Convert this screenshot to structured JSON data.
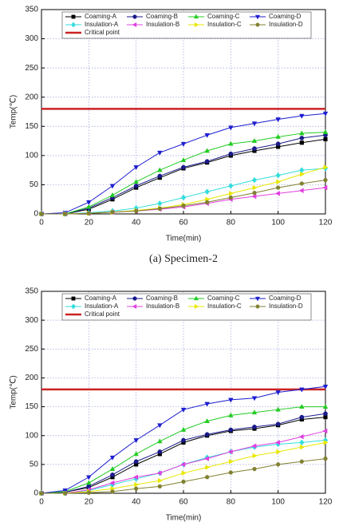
{
  "chart_data": [
    {
      "type": "line",
      "caption": "(a)  Specimen-2",
      "xlabel": "Time(min)",
      "ylabel": "Temp(℃)",
      "x": [
        0,
        10,
        20,
        30,
        40,
        50,
        60,
        70,
        80,
        90,
        100,
        110,
        120
      ],
      "xlim": [
        0,
        120
      ],
      "xticks": [
        0,
        20,
        40,
        60,
        80,
        100,
        120
      ],
      "ylim": [
        0,
        350
      ],
      "yticks": [
        0,
        50,
        100,
        150,
        200,
        250,
        300,
        350
      ],
      "grid": true,
      "legend": "upper left",
      "series": [
        {
          "name": "Coaming-A",
          "color": "#000000",
          "marker": "square",
          "values": [
            0,
            0,
            8,
            25,
            45,
            62,
            78,
            88,
            100,
            108,
            115,
            122,
            128
          ]
        },
        {
          "name": "Coaming-B",
          "color": "#1a1a8c",
          "marker": "circle",
          "values": [
            0,
            0,
            10,
            28,
            48,
            65,
            80,
            90,
            103,
            112,
            120,
            130,
            135
          ]
        },
        {
          "name": "Coaming-C",
          "color": "#22cc22",
          "marker": "triangle-up",
          "values": [
            0,
            0,
            12,
            32,
            55,
            75,
            92,
            108,
            120,
            125,
            132,
            138,
            140
          ]
        },
        {
          "name": "Coaming-D",
          "color": "#1c1cd0",
          "marker": "triangle-down",
          "values": [
            0,
            2,
            20,
            48,
            80,
            105,
            120,
            135,
            148,
            155,
            162,
            168,
            172
          ]
        },
        {
          "name": "Insulation-A",
          "color": "#33dddd",
          "marker": "diamond",
          "values": [
            0,
            0,
            2,
            5,
            10,
            18,
            28,
            38,
            48,
            58,
            66,
            75,
            78
          ]
        },
        {
          "name": "Insulation-B",
          "color": "#e040e0",
          "marker": "triangle-left",
          "values": [
            0,
            0,
            1,
            3,
            5,
            8,
            12,
            18,
            25,
            30,
            35,
            40,
            45
          ]
        },
        {
          "name": "Insulation-C",
          "color": "#e8e800",
          "marker": "triangle-right",
          "values": [
            0,
            0,
            1,
            3,
            6,
            10,
            16,
            25,
            35,
            45,
            55,
            68,
            80
          ]
        },
        {
          "name": "Insulation-D",
          "color": "#808030",
          "marker": "hexagon",
          "values": [
            0,
            0,
            1,
            3,
            5,
            9,
            14,
            20,
            28,
            36,
            45,
            52,
            58
          ]
        }
      ],
      "reference_lines": [
        {
          "name": "Critical point",
          "value": 180,
          "color": "#cc2222"
        }
      ]
    },
    {
      "type": "line",
      "xlabel": "Time(min)",
      "ylabel": "Temp(℃)",
      "x": [
        0,
        10,
        20,
        30,
        40,
        50,
        60,
        70,
        80,
        90,
        100,
        110,
        120
      ],
      "xlim": [
        0,
        120
      ],
      "xticks": [
        0,
        20,
        40,
        60,
        80,
        100,
        120
      ],
      "ylim": [
        0,
        350
      ],
      "yticks": [
        0,
        50,
        100,
        150,
        200,
        250,
        300,
        350
      ],
      "grid": true,
      "legend": "upper left",
      "series": [
        {
          "name": "Coaming-A",
          "color": "#000000",
          "marker": "square",
          "values": [
            0,
            2,
            10,
            28,
            50,
            68,
            88,
            100,
            108,
            112,
            118,
            128,
            132
          ]
        },
        {
          "name": "Coaming-B",
          "color": "#1a1a8c",
          "marker": "circle",
          "values": [
            0,
            2,
            12,
            32,
            55,
            72,
            92,
            102,
            110,
            115,
            120,
            132,
            138
          ]
        },
        {
          "name": "Coaming-C",
          "color": "#22cc22",
          "marker": "triangle-up",
          "values": [
            0,
            3,
            18,
            42,
            68,
            90,
            110,
            125,
            135,
            140,
            145,
            150,
            150
          ]
        },
        {
          "name": "Coaming-D",
          "color": "#1c1cd0",
          "marker": "triangle-down",
          "values": [
            0,
            5,
            28,
            62,
            92,
            118,
            145,
            155,
            162,
            165,
            175,
            180,
            185
          ]
        },
        {
          "name": "Insulation-A",
          "color": "#33dddd",
          "marker": "diamond",
          "values": [
            0,
            0,
            5,
            15,
            25,
            35,
            50,
            62,
            72,
            80,
            85,
            88,
            92
          ]
        },
        {
          "name": "Insulation-B",
          "color": "#e040e0",
          "marker": "triangle-left",
          "values": [
            0,
            0,
            6,
            18,
            28,
            35,
            50,
            60,
            72,
            82,
            88,
            98,
            108
          ]
        },
        {
          "name": "Insulation-C",
          "color": "#e8e800",
          "marker": "triangle-right",
          "values": [
            0,
            0,
            3,
            8,
            15,
            22,
            35,
            45,
            55,
            65,
            72,
            80,
            88
          ]
        },
        {
          "name": "Insulation-D",
          "color": "#808030",
          "marker": "hexagon",
          "values": [
            0,
            0,
            1,
            3,
            8,
            12,
            20,
            28,
            36,
            42,
            50,
            55,
            60
          ]
        }
      ],
      "reference_lines": [
        {
          "name": "Critical point",
          "value": 180,
          "color": "#cc2222"
        }
      ]
    }
  ]
}
